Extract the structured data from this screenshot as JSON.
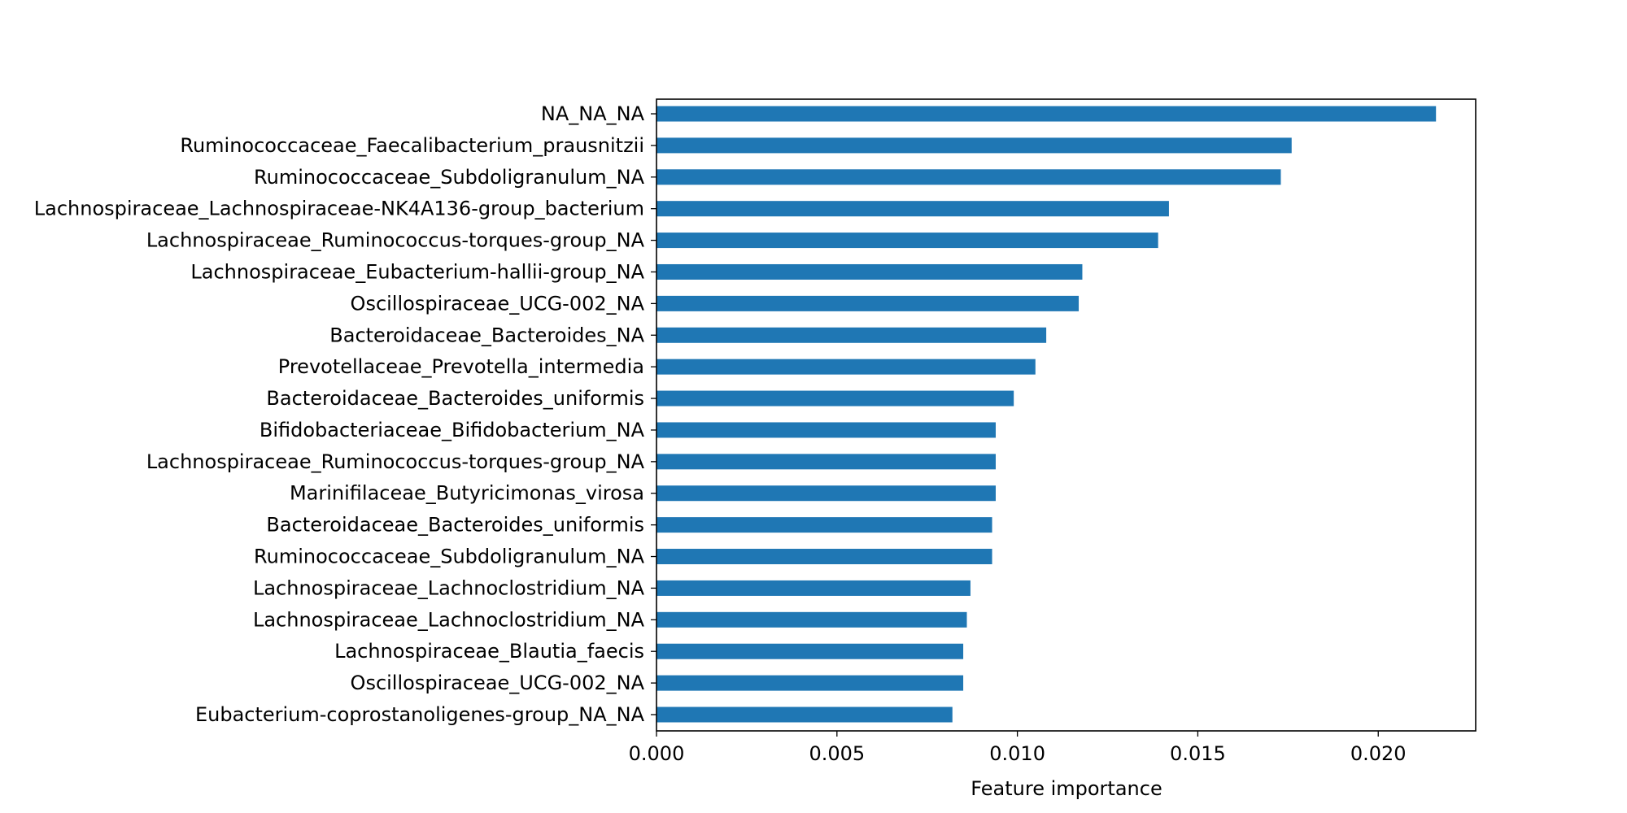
{
  "chart_data": {
    "type": "bar",
    "orientation": "horizontal",
    "title": "",
    "xlabel": "Feature importance",
    "ylabel": "",
    "xlim": [
      0.0,
      0.0227
    ],
    "xticks": [
      0.0,
      0.005,
      0.01,
      0.015,
      0.02
    ],
    "xtick_labels": [
      "0.000",
      "0.005",
      "0.010",
      "0.015",
      "0.020"
    ],
    "grid": false,
    "legend": "none",
    "bar_color": "#1f77b4",
    "categories": [
      "NA_NA_NA",
      "Ruminococcaceae_Faecalibacterium_prausnitzii",
      "Ruminococcaceae_Subdoligranulum_NA",
      "Lachnospiraceae_Lachnospiraceae-NK4A136-group_bacterium",
      "Lachnospiraceae_Ruminococcus-torques-group_NA",
      "Lachnospiraceae_Eubacterium-hallii-group_NA",
      "Oscillospiraceae_UCG-002_NA",
      "Bacteroidaceae_Bacteroides_NA",
      "Prevotellaceae_Prevotella_intermedia",
      "Bacteroidaceae_Bacteroides_uniformis",
      "Bifidobacteriaceae_Bifidobacterium_NA",
      "Lachnospiraceae_Ruminococcus-torques-group_NA",
      "Marinifilaceae_Butyricimonas_virosa",
      "Bacteroidaceae_Bacteroides_uniformis",
      "Ruminococcaceae_Subdoligranulum_NA",
      "Lachnospiraceae_Lachnoclostridium_NA",
      "Lachnospiraceae_Lachnoclostridium_NA",
      "Lachnospiraceae_Blautia_faecis",
      "Oscillospiraceae_UCG-002_NA",
      "Eubacterium-coprostanoligenes-group_NA_NA"
    ],
    "values": [
      0.0216,
      0.0176,
      0.0173,
      0.0142,
      0.0139,
      0.0118,
      0.0117,
      0.0108,
      0.0105,
      0.0099,
      0.0094,
      0.0094,
      0.0094,
      0.0093,
      0.0093,
      0.0087,
      0.0086,
      0.0085,
      0.0085,
      0.0082
    ]
  }
}
